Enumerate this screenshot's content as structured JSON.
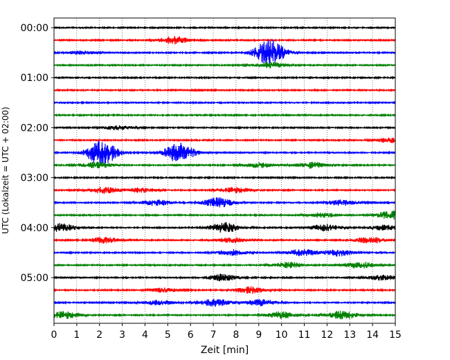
{
  "chart_data": {
    "type": "line",
    "title": "",
    "xlabel": "Zeit  [min]",
    "ylabel": "UTC (Lokalzeit = UTC + 02:00)",
    "xlim": [
      0,
      15
    ],
    "x_ticks": [
      "0",
      "1",
      "2",
      "3",
      "4",
      "5",
      "6",
      "7",
      "8",
      "9",
      "10",
      "11",
      "12",
      "13",
      "14",
      "15"
    ],
    "y_ticks": [
      "00:00",
      "01:00",
      "02:00",
      "03:00",
      "04:00",
      "05:00"
    ],
    "grid": "vertical dotted at each minute",
    "legend": "none",
    "trace_interval_minutes": 15,
    "trace_colors": [
      "#000000",
      "#ff0000",
      "#0000ff",
      "#008000"
    ],
    "series": [
      {
        "start": "00:00",
        "color": "#000000",
        "events": []
      },
      {
        "start": "00:15",
        "color": "#ff0000",
        "events": [
          {
            "t": 5.3,
            "amp": 0.45
          }
        ]
      },
      {
        "start": "00:30",
        "color": "#0000ff",
        "events": [
          {
            "t": 9.5,
            "amp": 1.6
          },
          {
            "t": 1.2,
            "amp": 0.2
          }
        ]
      },
      {
        "start": "00:45",
        "color": "#008000",
        "events": [
          {
            "t": 9.5,
            "amp": 0.35
          }
        ]
      },
      {
        "start": "01:00",
        "color": "#000000",
        "events": []
      },
      {
        "start": "01:15",
        "color": "#ff0000",
        "events": []
      },
      {
        "start": "01:30",
        "color": "#0000ff",
        "events": []
      },
      {
        "start": "01:45",
        "color": "#008000",
        "events": []
      },
      {
        "start": "02:00",
        "color": "#000000",
        "events": [
          {
            "t": 2.8,
            "amp": 0.25
          }
        ]
      },
      {
        "start": "02:15",
        "color": "#ff0000",
        "events": [
          {
            "t": 14.8,
            "amp": 0.3
          }
        ]
      },
      {
        "start": "02:30",
        "color": "#0000ff",
        "events": [
          {
            "t": 2.1,
            "amp": 1.6
          },
          {
            "t": 5.5,
            "amp": 1.2
          }
        ]
      },
      {
        "start": "02:45",
        "color": "#008000",
        "events": [
          {
            "t": 1.9,
            "amp": 0.35
          },
          {
            "t": 9.0,
            "amp": 0.3
          },
          {
            "t": 11.3,
            "amp": 0.35
          }
        ]
      },
      {
        "start": "03:00",
        "color": "#000000",
        "events": []
      },
      {
        "start": "03:15",
        "color": "#ff0000",
        "events": [
          {
            "t": 2.2,
            "amp": 0.4
          },
          {
            "t": 3.8,
            "amp": 0.3
          },
          {
            "t": 8.0,
            "amp": 0.35
          }
        ]
      },
      {
        "start": "03:30",
        "color": "#0000ff",
        "events": [
          {
            "t": 4.5,
            "amp": 0.35
          },
          {
            "t": 7.2,
            "amp": 0.6
          },
          {
            "t": 12.6,
            "amp": 0.35
          }
        ]
      },
      {
        "start": "03:45",
        "color": "#008000",
        "events": [
          {
            "t": 11.8,
            "amp": 0.3
          },
          {
            "t": 14.8,
            "amp": 0.5
          }
        ]
      },
      {
        "start": "04:00",
        "color": "#000000",
        "events": [
          {
            "t": 0.3,
            "amp": 0.5
          },
          {
            "t": 7.5,
            "amp": 0.6
          },
          {
            "t": 11.9,
            "amp": 0.4
          },
          {
            "t": 14.5,
            "amp": 0.3
          }
        ]
      },
      {
        "start": "04:15",
        "color": "#ff0000",
        "events": [
          {
            "t": 2.2,
            "amp": 0.35
          },
          {
            "t": 7.8,
            "amp": 0.3
          },
          {
            "t": 13.9,
            "amp": 0.4
          }
        ]
      },
      {
        "start": "04:30",
        "color": "#0000ff",
        "events": [
          {
            "t": 7.8,
            "amp": 0.35
          },
          {
            "t": 10.9,
            "amp": 0.4
          },
          {
            "t": 12.5,
            "amp": 0.4
          }
        ]
      },
      {
        "start": "04:45",
        "color": "#008000",
        "events": [
          {
            "t": 10.3,
            "amp": 0.35
          },
          {
            "t": 13.4,
            "amp": 0.4
          }
        ]
      },
      {
        "start": "05:00",
        "color": "#000000",
        "events": [
          {
            "t": 7.4,
            "amp": 0.4
          },
          {
            "t": 14.4,
            "amp": 0.3
          }
        ]
      },
      {
        "start": "05:15",
        "color": "#ff0000",
        "events": [
          {
            "t": 8.6,
            "amp": 0.4
          },
          {
            "t": 4.8,
            "amp": 0.25
          }
        ]
      },
      {
        "start": "05:30",
        "color": "#0000ff",
        "events": [
          {
            "t": 4.6,
            "amp": 0.3
          },
          {
            "t": 7.1,
            "amp": 0.45
          },
          {
            "t": 9.1,
            "amp": 0.4
          }
        ]
      },
      {
        "start": "05:45",
        "color": "#008000",
        "events": [
          {
            "t": 0.5,
            "amp": 0.45
          },
          {
            "t": 10.0,
            "amp": 0.4
          },
          {
            "t": 12.7,
            "amp": 0.5
          }
        ]
      }
    ]
  }
}
